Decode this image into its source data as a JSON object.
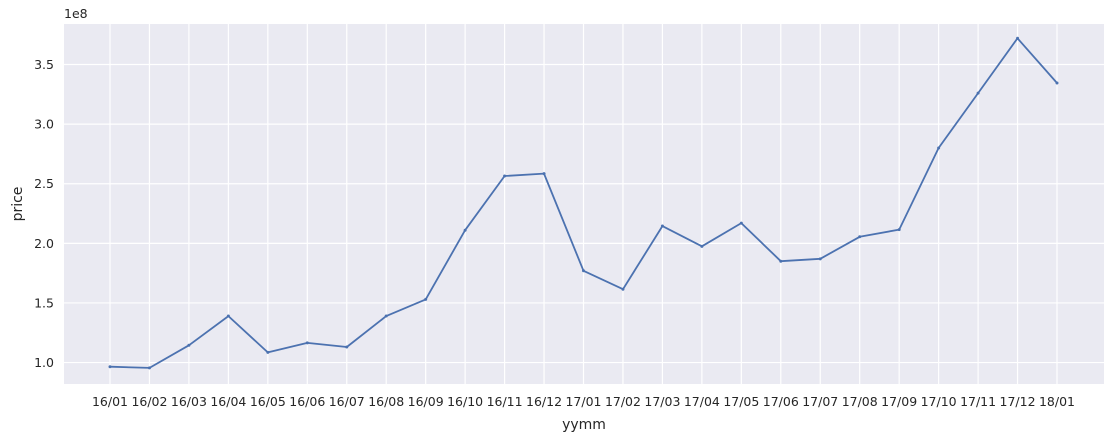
{
  "chart_data": {
    "type": "line",
    "title": "",
    "xlabel": "yymm",
    "ylabel": "price",
    "y_offset_label": "1e8",
    "categories": [
      "16/01",
      "16/02",
      "16/03",
      "16/04",
      "16/05",
      "16/06",
      "16/07",
      "16/08",
      "16/09",
      "16/10",
      "16/11",
      "16/12",
      "17/01",
      "17/02",
      "17/03",
      "17/04",
      "17/05",
      "17/06",
      "17/07",
      "17/08",
      "17/09",
      "17/10",
      "17/11",
      "17/12",
      "18/01"
    ],
    "series": [
      {
        "values": [
          0.965,
          0.955,
          1.145,
          1.39,
          1.085,
          1.165,
          1.13,
          1.39,
          1.53,
          2.11,
          2.565,
          2.585,
          1.77,
          1.615,
          2.145,
          1.975,
          2.17,
          1.85,
          1.87,
          2.055,
          2.115,
          2.8,
          3.26,
          3.72,
          3.345
        ],
        "color": "#4c72b0"
      }
    ],
    "yticks": [
      "1.0",
      "1.5",
      "2.0",
      "2.5",
      "3.0",
      "3.5"
    ],
    "ylim": [
      0.82,
      3.84
    ],
    "grid": true,
    "background": "#eaeaf2",
    "grid_color": "#ffffff"
  }
}
